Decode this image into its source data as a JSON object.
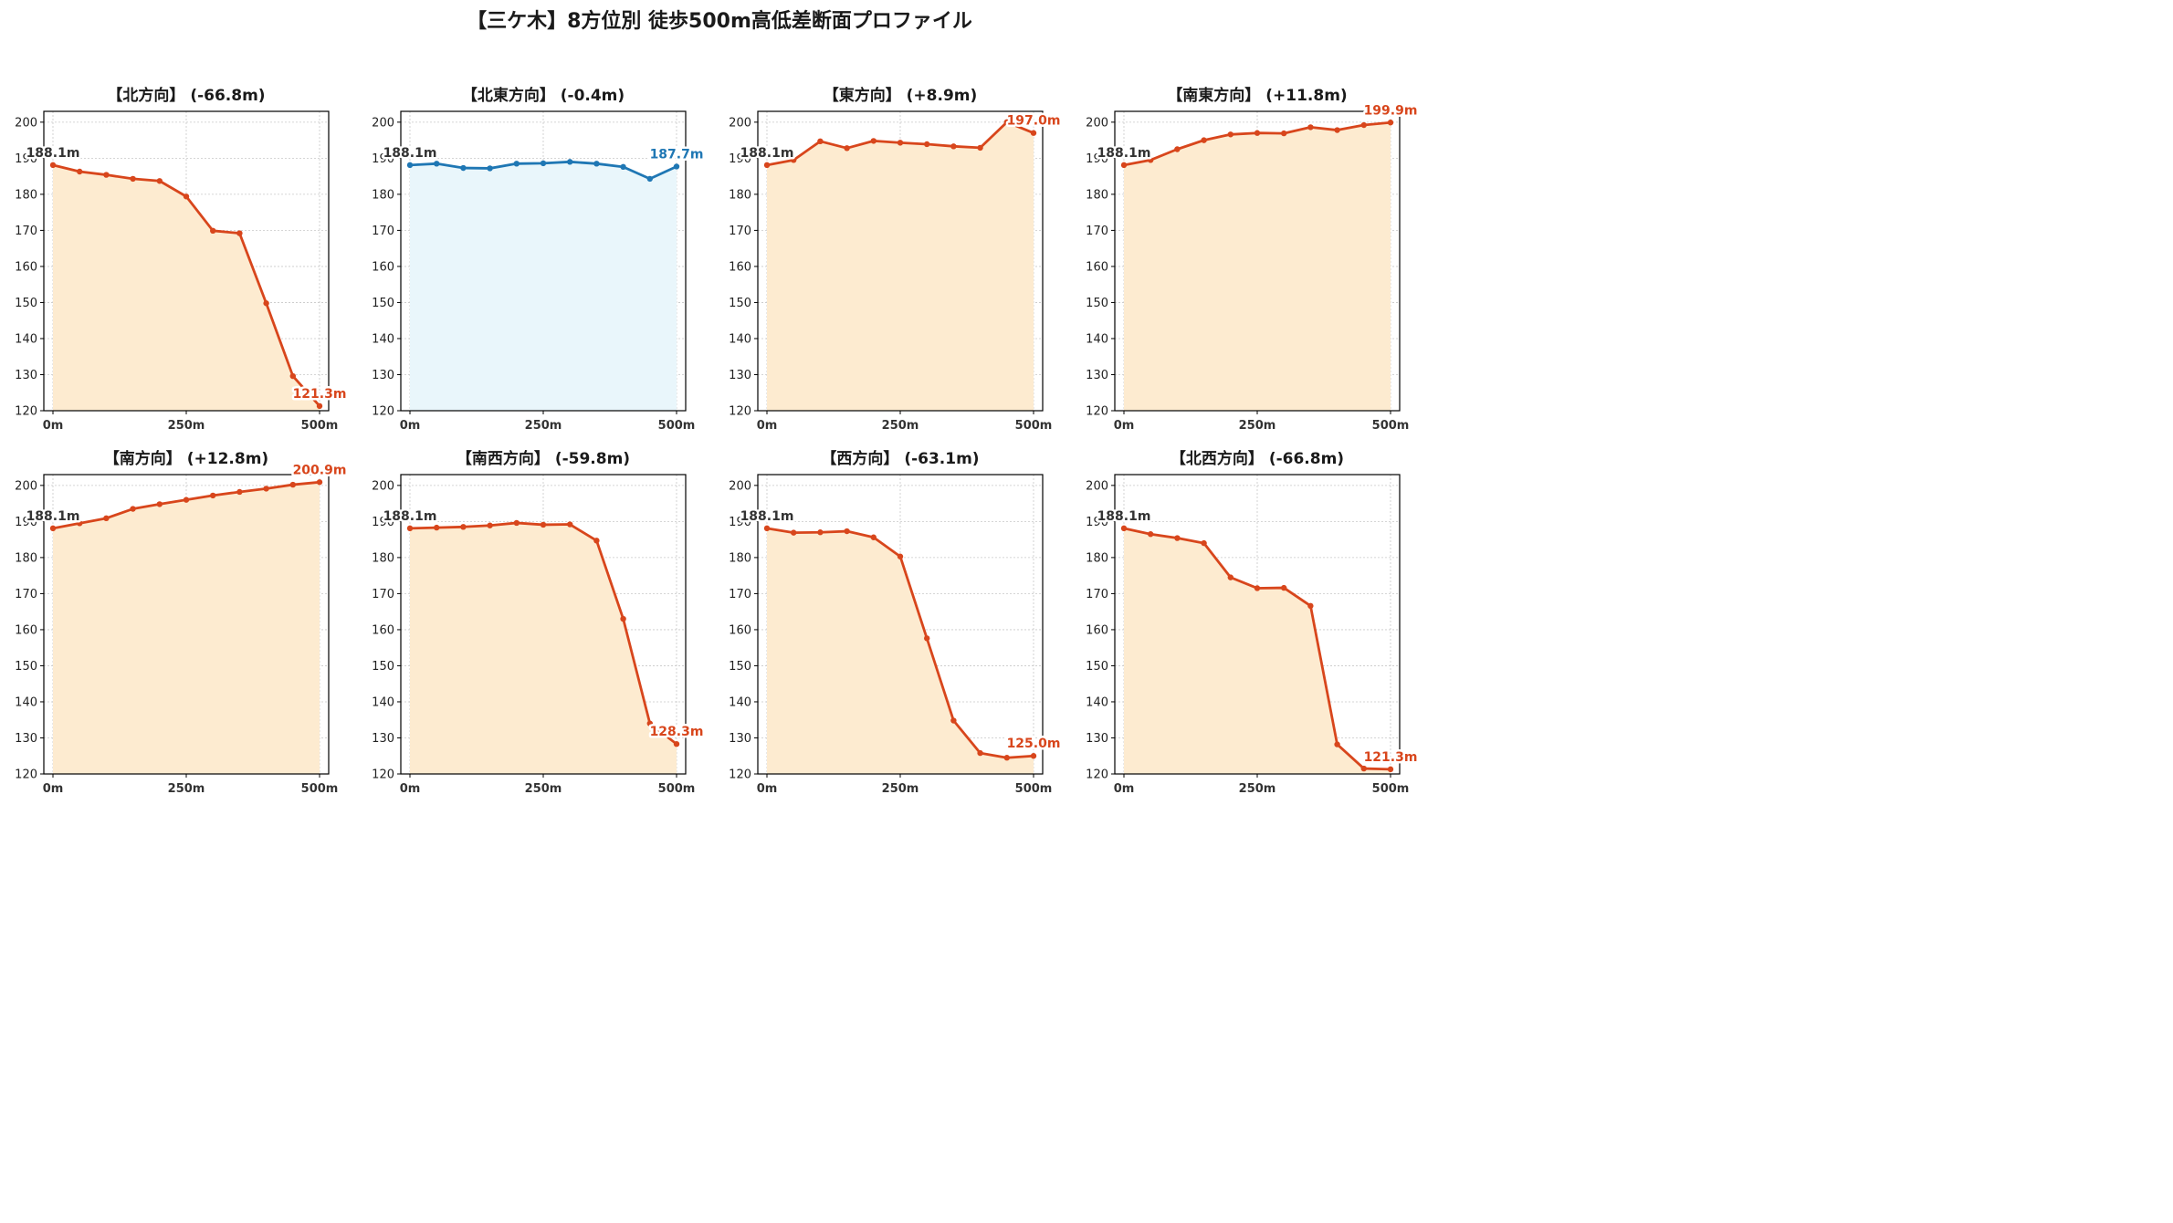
{
  "title": "【三ケ木】8方位別 徒歩500m高低差断面プロファイル",
  "colors": {
    "down_line": "#d8461c",
    "down_fill": "#fdebd0",
    "flat_line": "#1f77b4",
    "flat_fill": "#e9f6fb",
    "start_label": "#333333",
    "grid": "#c8c8c8"
  },
  "chart_data": [
    {
      "type": "area",
      "title": "【北方向】 (-66.8m)",
      "x": [
        0,
        50,
        100,
        150,
        200,
        250,
        300,
        350,
        400,
        450,
        500
      ],
      "values": [
        188.1,
        186.3,
        185.4,
        184.3,
        183.7,
        179.4,
        169.9,
        169.2,
        149.8,
        129.6,
        121.3
      ],
      "start_label": "188.1m",
      "end_label": "121.3m",
      "color": "down_line",
      "fill": "down_fill",
      "ylim": [
        120,
        203
      ],
      "yticks": [
        120,
        130,
        140,
        150,
        160,
        170,
        180,
        190,
        200
      ],
      "xticks": [
        "0m",
        "250m",
        "500m"
      ],
      "grid": true
    },
    {
      "type": "area",
      "title": "【北東方向】 (-0.4m)",
      "x": [
        0,
        50,
        100,
        150,
        200,
        250,
        300,
        350,
        400,
        450,
        500
      ],
      "values": [
        188.1,
        188.5,
        187.3,
        187.2,
        188.5,
        188.6,
        189.0,
        188.5,
        187.6,
        184.3,
        187.7
      ],
      "start_label": "188.1m",
      "end_label": "187.7m",
      "color": "flat_line",
      "fill": "flat_fill",
      "ylim": [
        120,
        203
      ],
      "yticks": [
        120,
        130,
        140,
        150,
        160,
        170,
        180,
        190,
        200
      ],
      "xticks": [
        "0m",
        "250m",
        "500m"
      ],
      "grid": true
    },
    {
      "type": "area",
      "title": "【東方向】 (+8.9m)",
      "x": [
        0,
        50,
        100,
        150,
        200,
        250,
        300,
        350,
        400,
        450,
        500
      ],
      "values": [
        188.1,
        189.5,
        194.7,
        192.8,
        194.8,
        194.3,
        193.9,
        193.3,
        192.9,
        200.0,
        197.0
      ],
      "start_label": "188.1m",
      "end_label": "197.0m",
      "color": "down_line",
      "fill": "down_fill",
      "ylim": [
        120,
        203
      ],
      "yticks": [
        120,
        130,
        140,
        150,
        160,
        170,
        180,
        190,
        200
      ],
      "xticks": [
        "0m",
        "250m",
        "500m"
      ],
      "grid": true
    },
    {
      "type": "area",
      "title": "【南東方向】 (+11.8m)",
      "x": [
        0,
        50,
        100,
        150,
        200,
        250,
        300,
        350,
        400,
        450,
        500
      ],
      "values": [
        188.1,
        189.5,
        192.5,
        195.0,
        196.6,
        197.0,
        196.9,
        198.6,
        197.8,
        199.2,
        199.9
      ],
      "start_label": "188.1m",
      "end_label": "199.9m",
      "color": "down_line",
      "fill": "down_fill",
      "ylim": [
        120,
        203
      ],
      "yticks": [
        120,
        130,
        140,
        150,
        160,
        170,
        180,
        190,
        200
      ],
      "xticks": [
        "0m",
        "250m",
        "500m"
      ],
      "grid": true
    },
    {
      "type": "area",
      "title": "【南方向】 (+12.8m)",
      "x": [
        0,
        50,
        100,
        150,
        200,
        250,
        300,
        350,
        400,
        450,
        500
      ],
      "values": [
        188.1,
        189.5,
        190.9,
        193.5,
        194.8,
        196.0,
        197.2,
        198.2,
        199.1,
        200.2,
        200.9
      ],
      "start_label": "188.1m",
      "end_label": "200.9m",
      "color": "down_line",
      "fill": "down_fill",
      "ylim": [
        120,
        203
      ],
      "yticks": [
        120,
        130,
        140,
        150,
        160,
        170,
        180,
        190,
        200
      ],
      "xticks": [
        "0m",
        "250m",
        "500m"
      ],
      "grid": true
    },
    {
      "type": "area",
      "title": "【南西方向】 (-59.8m)",
      "x": [
        0,
        50,
        100,
        150,
        200,
        250,
        300,
        350,
        400,
        450,
        500
      ],
      "values": [
        188.1,
        188.3,
        188.5,
        188.9,
        189.6,
        189.1,
        189.2,
        184.7,
        163.0,
        134.0,
        128.3
      ],
      "start_label": "188.1m",
      "end_label": "128.3m",
      "color": "down_line",
      "fill": "down_fill",
      "ylim": [
        120,
        203
      ],
      "yticks": [
        120,
        130,
        140,
        150,
        160,
        170,
        180,
        190,
        200
      ],
      "xticks": [
        "0m",
        "250m",
        "500m"
      ],
      "grid": true
    },
    {
      "type": "area",
      "title": "【西方向】 (-63.1m)",
      "x": [
        0,
        50,
        100,
        150,
        200,
        250,
        300,
        350,
        400,
        450,
        500
      ],
      "values": [
        188.1,
        186.9,
        187.0,
        187.3,
        185.6,
        180.3,
        157.6,
        134.8,
        125.8,
        124.5,
        125.0
      ],
      "start_label": "188.1m",
      "end_label": "125.0m",
      "color": "down_line",
      "fill": "down_fill",
      "ylim": [
        120,
        203
      ],
      "yticks": [
        120,
        130,
        140,
        150,
        160,
        170,
        180,
        190,
        200
      ],
      "xticks": [
        "0m",
        "250m",
        "500m"
      ],
      "grid": true
    },
    {
      "type": "area",
      "title": "【北西方向】 (-66.8m)",
      "x": [
        0,
        50,
        100,
        150,
        200,
        250,
        300,
        350,
        400,
        450,
        500
      ],
      "values": [
        188.1,
        186.5,
        185.4,
        184.0,
        174.5,
        171.5,
        171.6,
        166.6,
        128.2,
        121.5,
        121.3
      ],
      "start_label": "188.1m",
      "end_label": "121.3m",
      "color": "down_line",
      "fill": "down_fill",
      "ylim": [
        120,
        203
      ],
      "yticks": [
        120,
        130,
        140,
        150,
        160,
        170,
        180,
        190,
        200
      ],
      "xticks": [
        "0m",
        "250m",
        "500m"
      ],
      "grid": true
    }
  ]
}
